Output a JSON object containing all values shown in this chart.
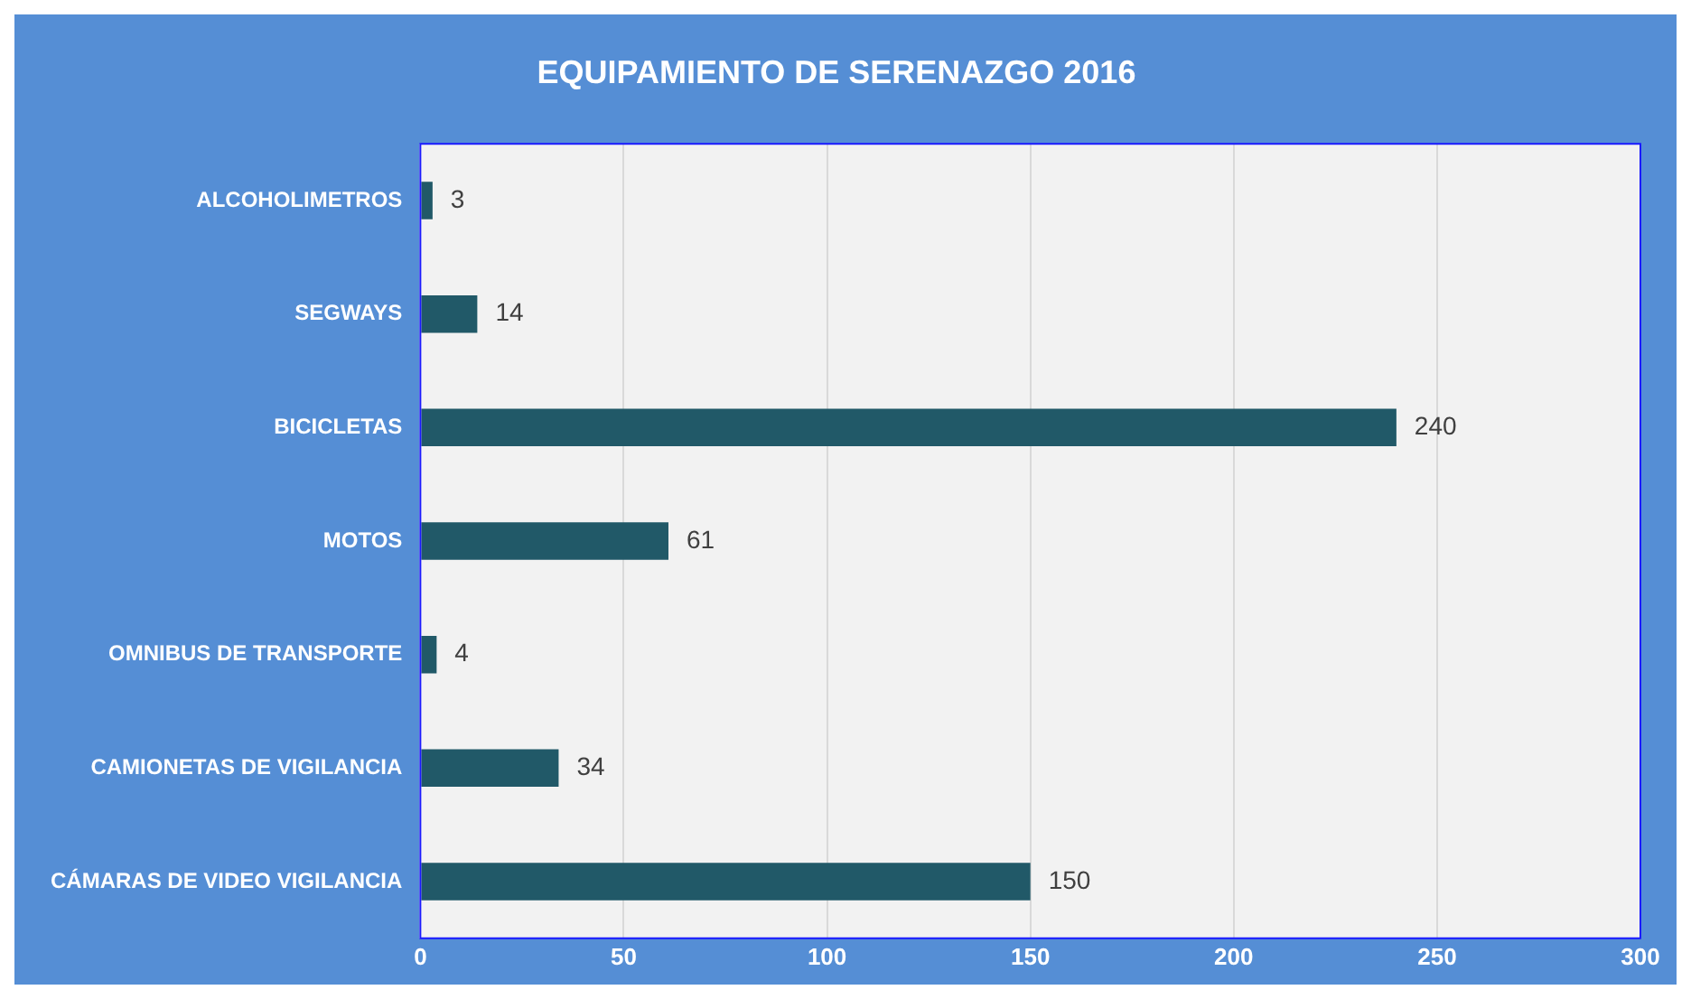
{
  "chart_data": {
    "type": "bar",
    "title": "EQUIPAMIENTO DE SERENAZGO 2016",
    "orientation": "horizontal",
    "categories": [
      "ALCOHOLIMETROS",
      "SEGWAYS",
      "BICICLETAS",
      "MOTOS",
      "OMNIBUS DE TRANSPORTE",
      "CAMIONETAS DE VIGILANCIA",
      "CÁMARAS DE VIDEO VIGILANCIA"
    ],
    "values": [
      3,
      14,
      240,
      61,
      4,
      34,
      150
    ],
    "color": "#215968",
    "xlim": [
      0,
      300
    ],
    "xticks": [
      0,
      50,
      100,
      150,
      200,
      250,
      300
    ],
    "grid": "x",
    "data_labels": true
  }
}
